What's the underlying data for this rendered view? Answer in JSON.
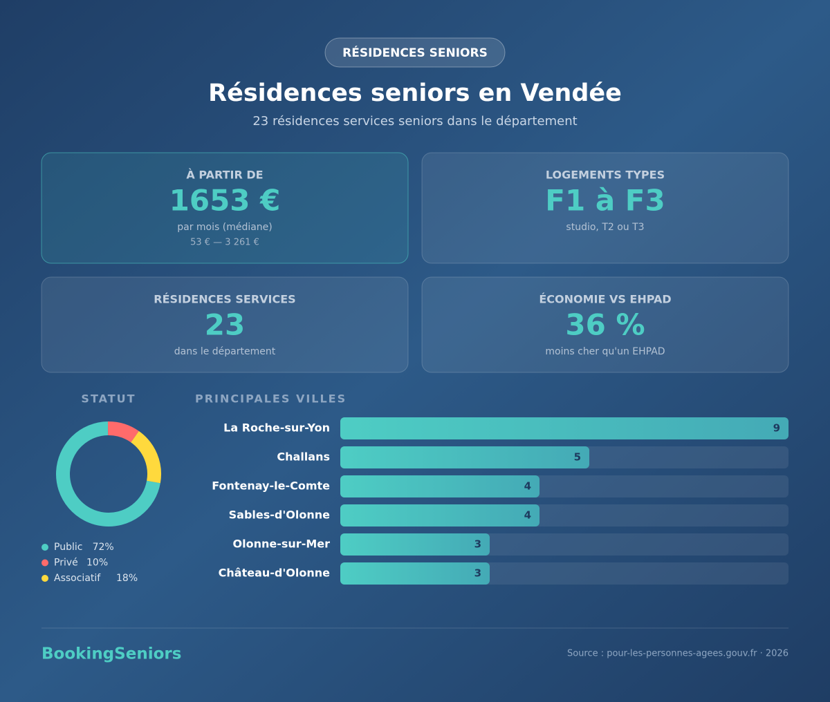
{
  "header": {
    "badge": "RÉSIDENCES SENIORS",
    "title": "Résidences seniors en Vendée",
    "subtitle": "23 résidences services seniors dans le département"
  },
  "cards": [
    {
      "label": "À PARTIR DE",
      "value": "1653 €",
      "sub": "par mois (médiane)",
      "extra": "53 € — 3 261 €"
    },
    {
      "label": "LOGEMENTS TYPES",
      "value": "F1 à F3",
      "sub": "studio, T2 ou T3"
    },
    {
      "label": "RÉSIDENCES SERVICES",
      "value": "23",
      "sub": "dans le département"
    },
    {
      "label": "ÉCONOMIE VS EHPAD",
      "value": "36 %",
      "sub": "moins cher qu'un EHPAD"
    }
  ],
  "chart_data": [
    {
      "type": "donut",
      "title": "STATUT",
      "categories": [
        "Public",
        "Privé",
        "Associatif"
      ],
      "values": [
        72,
        10,
        18
      ],
      "value_labels": [
        "72%",
        "10%",
        "18%"
      ],
      "colors": [
        "#4ecdc4",
        "#ff6b6b",
        "#ffd93d"
      ]
    },
    {
      "type": "hbar",
      "title": "PRINCIPALES VILLES",
      "categories": [
        "La Roche-sur-Yon",
        "Challans",
        "Fontenay-le-Comte",
        "Sables-d'Olonne",
        "Olonne-sur-Mer",
        "Château-d'Olonne"
      ],
      "values": [
        9,
        5,
        4,
        4,
        3,
        3
      ],
      "xlim": [
        0,
        9
      ],
      "color": "#4ecdc4"
    }
  ],
  "footer": {
    "brand": "BookingSeniors",
    "source": "Source : pour-les-personnes-agees.gouv.fr · 2026"
  }
}
